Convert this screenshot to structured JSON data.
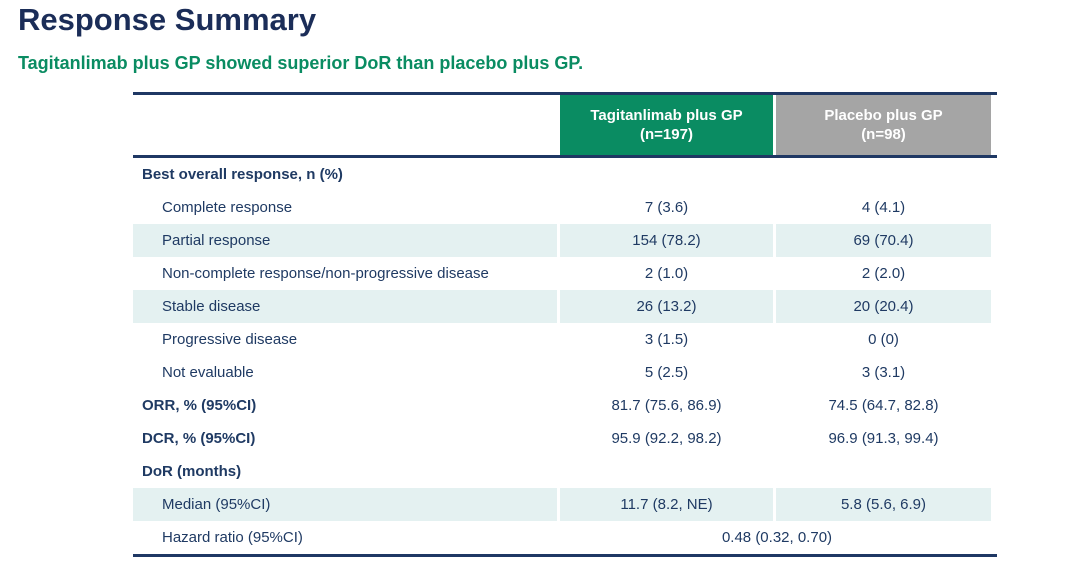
{
  "page": {
    "title": "Response Summary",
    "subtitle": "Tagitanlimab plus GP showed superior DoR than placebo plus GP."
  },
  "table": {
    "columns": [
      {
        "name": "Tagitanlimab plus GP",
        "n": "(n=197)"
      },
      {
        "name": "Placebo plus GP",
        "n": "(n=98)"
      }
    ],
    "rows": [
      {
        "label": "Best overall response, n (%)",
        "values": [
          "",
          ""
        ]
      },
      {
        "label": "Complete response",
        "values": [
          "7 (3.6)",
          "4 (4.1)"
        ]
      },
      {
        "label": "Partial response",
        "values": [
          "154 (78.2)",
          "69 (70.4)"
        ]
      },
      {
        "label": "Non-complete response/non-progressive disease",
        "values": [
          "2 (1.0)",
          "2 (2.0)"
        ]
      },
      {
        "label": "Stable disease",
        "values": [
          "26 (13.2)",
          "20 (20.4)"
        ]
      },
      {
        "label": "Progressive disease",
        "values": [
          "3 (1.5)",
          "0 (0)"
        ]
      },
      {
        "label": "Not evaluable",
        "values": [
          "5 (2.5)",
          "3 (3.1)"
        ]
      },
      {
        "label": "ORR, % (95%CI)",
        "values": [
          "81.7 (75.6, 86.9)",
          "74.5 (64.7, 82.8)"
        ]
      },
      {
        "label": "DCR, % (95%CI)",
        "values": [
          "95.9 (92.2, 98.2)",
          "96.9 (91.3, 99.4)"
        ]
      },
      {
        "label": "DoR (months)",
        "values": [
          "",
          ""
        ]
      },
      {
        "label": "Median (95%CI)",
        "values": [
          "11.7 (8.2, NE)",
          "5.8 (5.6, 6.9)"
        ]
      },
      {
        "label": "Hazard ratio (95%CI)",
        "span_value": "0.48 (0.32, 0.70)"
      }
    ]
  },
  "colors": {
    "title_navy": "#1b2d58",
    "body_navy": "#1f3a63",
    "accent_green": "#0a8c62",
    "header_gray": "#a5a5a5",
    "row_shade_teal": "#e4f1f1",
    "border_navy": "#1f3864"
  }
}
